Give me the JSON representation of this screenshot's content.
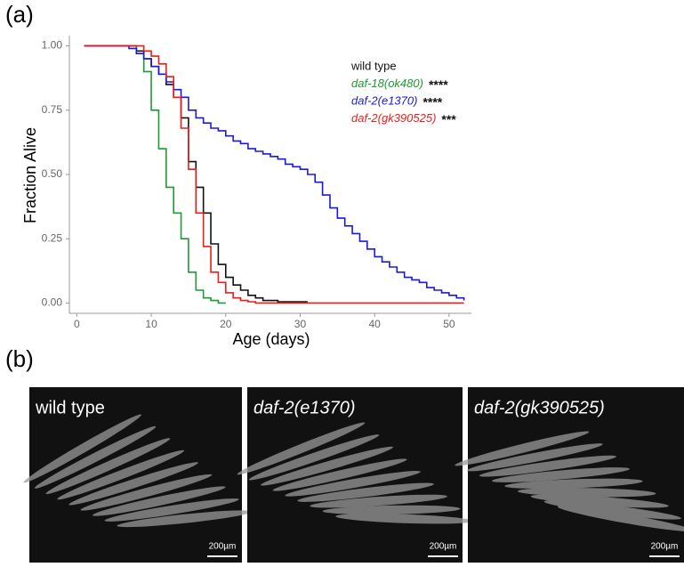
{
  "panel_labels": [
    "(a)",
    "(b)"
  ],
  "chart_data": {
    "type": "line",
    "step": true,
    "xlabel": "Age (days)",
    "ylabel": "Fraction Alive",
    "x": [
      1,
      2,
      3,
      4,
      5,
      6,
      7,
      8,
      9,
      10,
      11,
      12,
      13,
      14,
      15,
      16,
      17,
      18,
      19,
      20,
      21,
      22,
      23,
      24,
      25,
      26,
      27,
      28,
      29,
      30,
      31,
      32,
      33,
      34,
      35,
      36,
      37,
      38,
      39,
      40,
      41,
      42,
      43,
      44,
      45,
      46,
      47,
      48,
      49,
      50,
      51,
      52
    ],
    "xlim": [
      -1,
      53
    ],
    "xticks": [
      0,
      10,
      20,
      30,
      40,
      50
    ],
    "ylim": [
      -0.04,
      1.04
    ],
    "yticks": [
      {
        "value": 0,
        "label": "0.00"
      },
      {
        "value": 0.25,
        "label": "0.25"
      },
      {
        "value": 0.5,
        "label": "0.50"
      },
      {
        "value": 0.75,
        "label": "0.75"
      },
      {
        "value": 1,
        "label": "1.00"
      }
    ],
    "legend": "upper right",
    "series": [
      {
        "name": "wild type",
        "color": "#111111",
        "values": [
          1,
          1,
          1,
          1,
          1,
          1,
          1,
          0.98,
          0.95,
          0.92,
          0.89,
          0.85,
          0.8,
          0.72,
          0.55,
          0.45,
          0.35,
          0.23,
          0.15,
          0.1,
          0.07,
          0.05,
          0.03,
          0.02,
          0.01,
          0.01,
          0.005,
          0.005,
          0.005,
          0.005,
          0.005,
          null,
          null,
          null,
          null,
          null,
          null,
          null,
          null,
          null,
          null,
          null,
          null,
          null,
          null,
          null,
          null,
          null,
          null,
          null,
          null,
          null
        ]
      },
      {
        "name": "daf-18(ok480)",
        "significance": "****",
        "color": "#1e9a32",
        "values": [
          1,
          1,
          1,
          1,
          1,
          1,
          1,
          0.97,
          0.9,
          0.75,
          0.6,
          0.45,
          0.35,
          0.25,
          0.12,
          0.05,
          0.02,
          0.01,
          0,
          0,
          null,
          null,
          null,
          null,
          null,
          null,
          null,
          null,
          null,
          null,
          null,
          null,
          null,
          null,
          null,
          null,
          null,
          null,
          null,
          null,
          null,
          null,
          null,
          null,
          null,
          null,
          null,
          null,
          null,
          null,
          null,
          null
        ]
      },
      {
        "name": "daf-2(e1370)",
        "significance": "****",
        "color": "#1a1adc",
        "values": [
          1,
          1,
          1,
          1,
          1,
          1,
          0.99,
          0.97,
          0.95,
          0.92,
          0.89,
          0.86,
          0.83,
          0.8,
          0.75,
          0.72,
          0.7,
          0.68,
          0.67,
          0.65,
          0.63,
          0.62,
          0.6,
          0.59,
          0.58,
          0.57,
          0.56,
          0.54,
          0.53,
          0.52,
          0.5,
          0.47,
          0.42,
          0.37,
          0.33,
          0.3,
          0.27,
          0.24,
          0.21,
          0.18,
          0.16,
          0.14,
          0.12,
          0.1,
          0.09,
          0.08,
          0.06,
          0.05,
          0.04,
          0.03,
          0.02,
          0.01
        ]
      },
      {
        "name": "daf-2(gk390525)",
        "significance": "***",
        "color": "#e81e1e",
        "values": [
          1,
          1,
          1,
          1,
          1,
          1,
          1,
          1,
          0.98,
          0.96,
          0.93,
          0.88,
          0.8,
          0.68,
          0.52,
          0.35,
          0.22,
          0.12,
          0.08,
          0.04,
          0.02,
          0.01,
          0.005,
          0,
          0,
          0,
          0,
          0,
          0,
          0,
          0,
          0,
          0,
          0,
          0,
          0,
          0,
          0,
          0,
          0,
          0,
          0,
          0,
          0,
          0,
          0,
          0,
          0,
          0,
          0,
          0,
          0
        ]
      }
    ]
  },
  "images": [
    {
      "label": "wild type",
      "scale_bar": "200µm"
    },
    {
      "label": "daf-2(e1370)",
      "scale_bar": "200µm"
    },
    {
      "label": "daf-2(gk390525)",
      "scale_bar": "200µm"
    }
  ]
}
